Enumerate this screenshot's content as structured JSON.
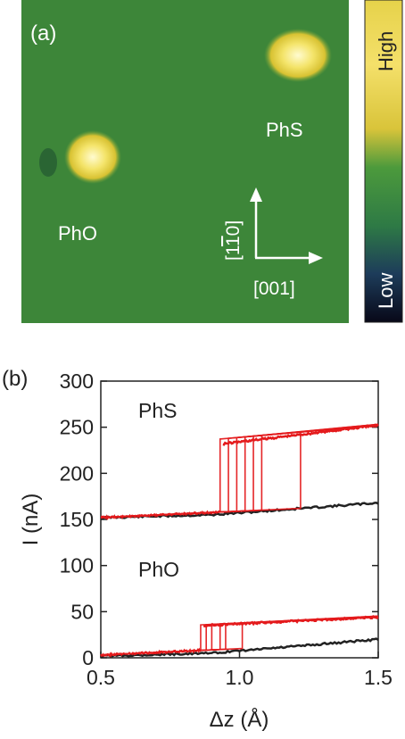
{
  "panel_a": {
    "label": "(a)",
    "molecules": [
      "PhS",
      "PhO"
    ],
    "direction_vertical": "[110]",
    "direction_vertical_bar_over": "1",
    "direction_horizontal": "[001]",
    "colorbar": {
      "high_label": "High",
      "low_label": "Low"
    },
    "colors": {
      "substrate": "#3f8a3a",
      "blob_core": "#fff5a0",
      "blob_edge": "#e0c030"
    }
  },
  "panel_b": {
    "label": "(b)",
    "annotations": [
      "PhS",
      "PhO"
    ]
  },
  "chart_data": {
    "type": "line",
    "xlabel": "Δz (Å)",
    "ylabel": "I (nA)",
    "xlim": [
      0.5,
      1.5
    ],
    "ylim": [
      0,
      300
    ],
    "x_ticks": [
      0.5,
      1.0,
      1.5
    ],
    "y_ticks": [
      0,
      50,
      100,
      150,
      200,
      250,
      300
    ],
    "series": [
      {
        "color": "#e41a1c",
        "x": [
          0.5,
          0.93,
          0.94,
          1.5
        ],
        "y": [
          152,
          158,
          232,
          252
        ]
      },
      {
        "color": "#222222",
        "x": [
          0.5,
          0.9,
          1.5
        ],
        "y": [
          152,
          155,
          168
        ]
      },
      {
        "color": "#e41a1c",
        "x": [
          0.5,
          0.86,
          0.87,
          1.5
        ],
        "y": [
          3,
          8,
          35,
          44
        ]
      },
      {
        "color": "#222222",
        "x": [
          0.5,
          0.9,
          1.5
        ],
        "y": [
          2,
          5,
          20
        ]
      }
    ],
    "switch_points_phs": [
      0.93,
      0.96,
      0.99,
      1.02,
      1.05,
      1.08,
      1.22
    ],
    "switch_points_pho": [
      0.86,
      0.88,
      0.9,
      0.93,
      0.95,
      1.01
    ],
    "grid": false
  }
}
